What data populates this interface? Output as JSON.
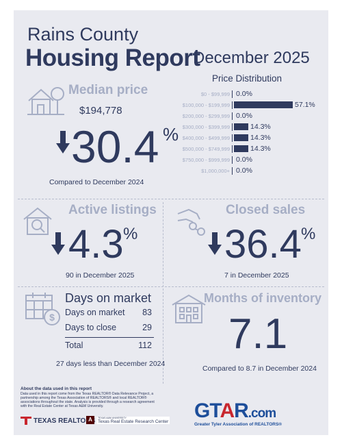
{
  "header": {
    "county": "Rains County",
    "title": "Housing Report",
    "period": "December 2025"
  },
  "median_price": {
    "heading": "Median price",
    "value": "$194,778",
    "change_number": "30.4",
    "change_symbol": "%",
    "direction": "down",
    "compared": "Compared to December 2024"
  },
  "price_distribution": {
    "title": "Price Distribution",
    "rows": [
      {
        "label": "$0 - $99,999",
        "value": "0.0%",
        "fraction": 0.0
      },
      {
        "label": "$100,000 - $199,999",
        "value": "57.1%",
        "fraction": 0.571
      },
      {
        "label": "$200,000 - $299,999",
        "value": "0.0%",
        "fraction": 0.0
      },
      {
        "label": "$300,000 - $399,999",
        "value": "14.3%",
        "fraction": 0.143
      },
      {
        "label": "$400,000 - $499,999",
        "value": "14.3%",
        "fraction": 0.143
      },
      {
        "label": "$500,000 - $749,999",
        "value": "14.3%",
        "fraction": 0.143
      },
      {
        "label": "$750,000 - $999,999",
        "value": "0.0%",
        "fraction": 0.0
      },
      {
        "label": "$1,000,000+",
        "value": "0.0%",
        "fraction": 0.0
      }
    ]
  },
  "active_listings": {
    "heading": "Active listings",
    "change_number": "4.3",
    "change_symbol": "%",
    "direction": "down",
    "note": "90 in December 2025"
  },
  "closed_sales": {
    "heading": "Closed sales",
    "change_number": "36.4",
    "change_symbol": "%",
    "direction": "down",
    "note": "7 in December 2025"
  },
  "days_on_market": {
    "heading": "Days on market",
    "rows": [
      {
        "label": "Days on market",
        "value": "83"
      },
      {
        "label": "Days to close",
        "value": "29"
      }
    ],
    "total_label": "Total",
    "total_value": "112",
    "note": "27 days less than December 2024"
  },
  "months_inventory": {
    "heading": "Months of inventory",
    "value": "7.1",
    "compared": "Compared to 8.7 in December 2024"
  },
  "footer": {
    "about_title": "About the data used in this report",
    "about_text": "Data used in this report come from the Texas REALTOR® Data Relevance Project, a partnership among the Texas Association of REALTORS® and local REALTOR® associations throughout the state. Analysis is provided through a research agreement with the Real Estate Center at Texas A&M University.",
    "texas_realtors": "TEXAS REALTORS",
    "tamu_small": "TEXAS A&M UNIVERSITY",
    "tamu_center": "Texas Real Estate Research Center",
    "gtar_logo": "GTAR.com",
    "gtar_tagline": "Greater Tyler Association of REALTORS®"
  },
  "colors": {
    "navy": "#2f3a5e",
    "steel": "#a6aec5",
    "panel": "#e9eaf0",
    "gtar_blue": "#1d4e9a",
    "gtar_red": "#c8262e"
  },
  "icons": [
    "house-tree-icon",
    "down-arrow-icon",
    "house-search-icon",
    "hand-keys-icon",
    "calendar-money-icon",
    "building-icon"
  ]
}
